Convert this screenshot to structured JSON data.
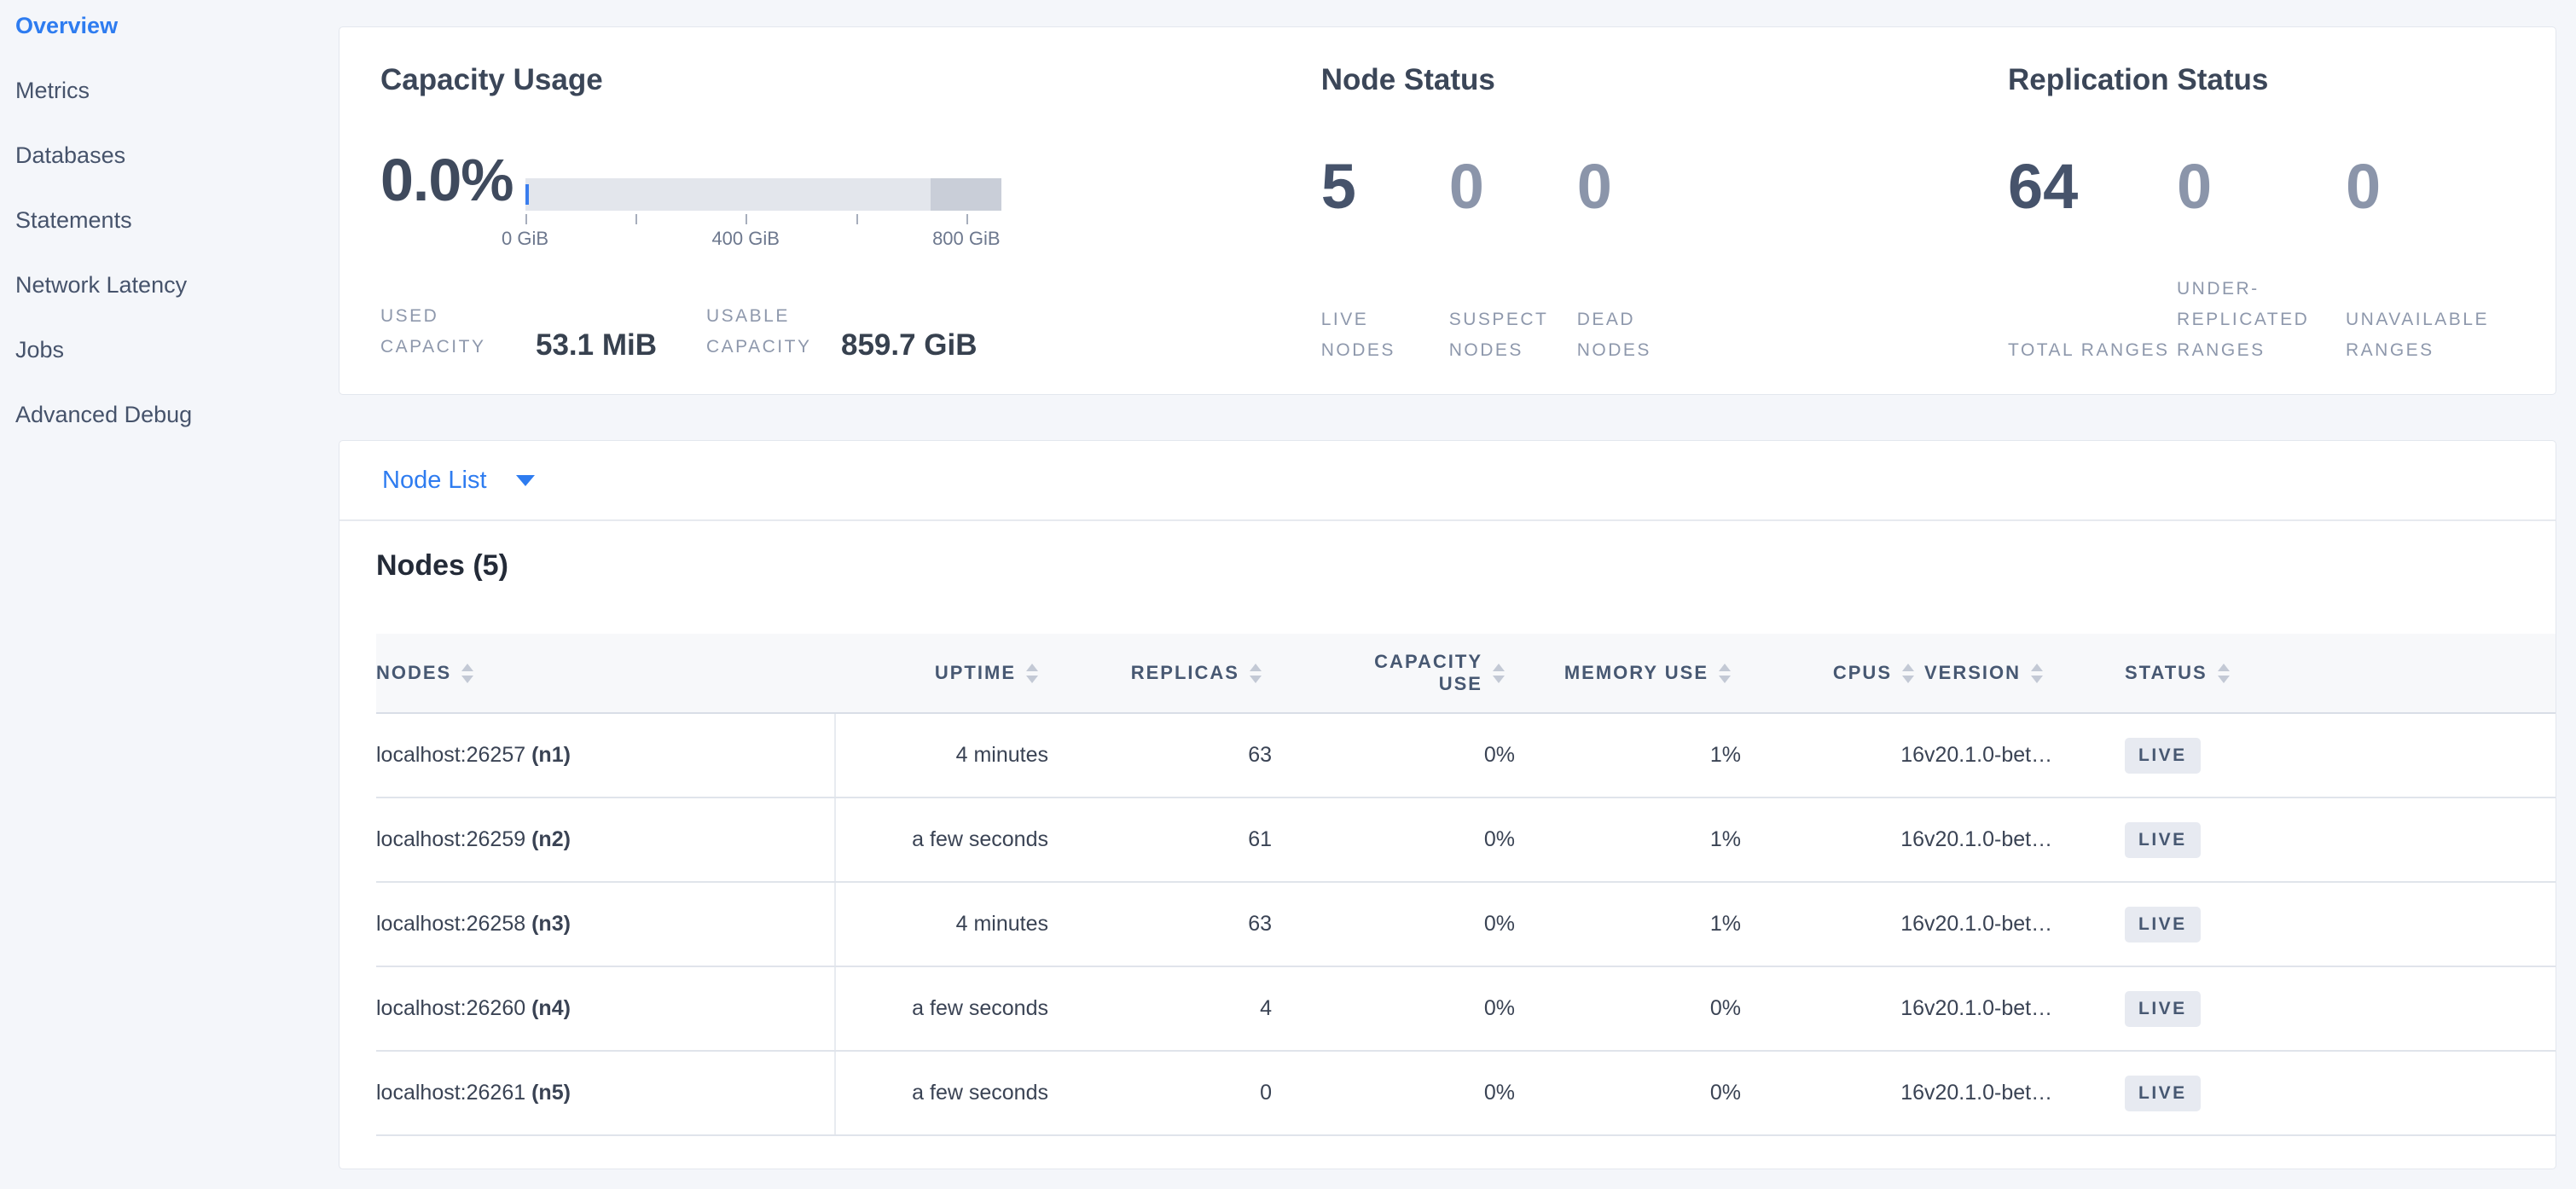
{
  "sidebar": {
    "items": [
      {
        "label": "Overview",
        "active": true
      },
      {
        "label": "Metrics",
        "active": false
      },
      {
        "label": "Databases",
        "active": false
      },
      {
        "label": "Statements",
        "active": false
      },
      {
        "label": "Network Latency",
        "active": false
      },
      {
        "label": "Jobs",
        "active": false
      },
      {
        "label": "Advanced Debug",
        "active": false
      }
    ]
  },
  "capacity": {
    "title": "Capacity Usage",
    "percent": "0.0%",
    "bar": {
      "max_gib": 863,
      "used_pct": 0,
      "reserved_from_gib": 735,
      "ticks": [
        {
          "value": 0,
          "label": "0 GiB"
        },
        {
          "value": 200,
          "label": ""
        },
        {
          "value": 400,
          "label": "400 GiB"
        },
        {
          "value": 600,
          "label": ""
        },
        {
          "value": 800,
          "label": "800 GiB"
        }
      ]
    },
    "stats": [
      {
        "label": "USED CAPACITY",
        "value": "53.1 MiB"
      },
      {
        "label": "USABLE CAPACITY",
        "value": "859.7 GiB"
      }
    ]
  },
  "node_status": {
    "title": "Node Status",
    "stats": [
      {
        "value": "5",
        "label": "LIVE NODES"
      },
      {
        "value": "0",
        "label": "SUSPECT NODES"
      },
      {
        "value": "0",
        "label": "DEAD NODES"
      }
    ]
  },
  "replication_status": {
    "title": "Replication Status",
    "stats": [
      {
        "value": "64",
        "label": "TOTAL RANGES"
      },
      {
        "value": "0",
        "label": "UNDER-REPLICATED RANGES"
      },
      {
        "value": "0",
        "label": "UNAVAILABLE RANGES"
      }
    ]
  },
  "node_list": {
    "dropdown_label": "Node List",
    "table_title": "Nodes (5)",
    "columns": [
      {
        "key": "node",
        "label": "NODES"
      },
      {
        "key": "uptime",
        "label": "UPTIME"
      },
      {
        "key": "replicas",
        "label": "REPLICAS"
      },
      {
        "key": "capacity",
        "label": "CAPACITY USE"
      },
      {
        "key": "memory",
        "label": "MEMORY USE"
      },
      {
        "key": "cpus",
        "label": "CPUS"
      },
      {
        "key": "version",
        "label": "VERSION"
      },
      {
        "key": "status",
        "label": "STATUS"
      }
    ],
    "rows": [
      {
        "node": "localhost:26257",
        "node_id": "(n1)",
        "uptime": "4 minutes",
        "replicas": "63",
        "capacity": "0%",
        "memory": "1%",
        "cpus": "16",
        "version": "v20.1.0-bet…",
        "status": "LIVE"
      },
      {
        "node": "localhost:26259",
        "node_id": "(n2)",
        "uptime": "a few seconds",
        "replicas": "61",
        "capacity": "0%",
        "memory": "1%",
        "cpus": "16",
        "version": "v20.1.0-bet…",
        "status": "LIVE"
      },
      {
        "node": "localhost:26258",
        "node_id": "(n3)",
        "uptime": "4 minutes",
        "replicas": "63",
        "capacity": "0%",
        "memory": "1%",
        "cpus": "16",
        "version": "v20.1.0-bet…",
        "status": "LIVE"
      },
      {
        "node": "localhost:26260",
        "node_id": "(n4)",
        "uptime": "a few seconds",
        "replicas": "4",
        "capacity": "0%",
        "memory": "0%",
        "cpus": "16",
        "version": "v20.1.0-bet…",
        "status": "LIVE"
      },
      {
        "node": "localhost:26261",
        "node_id": "(n5)",
        "uptime": "a few seconds",
        "replicas": "0",
        "capacity": "0%",
        "memory": "0%",
        "cpus": "16",
        "version": "v20.1.0-bet…",
        "status": "LIVE"
      }
    ]
  },
  "colors": {
    "accent_blue": "#2e7cf0",
    "bar_light": "#e3e6ec",
    "bar_dark": "#c9ced8",
    "badge_bg": "#e7eaf1",
    "page_bg": "#f4f6fa"
  }
}
